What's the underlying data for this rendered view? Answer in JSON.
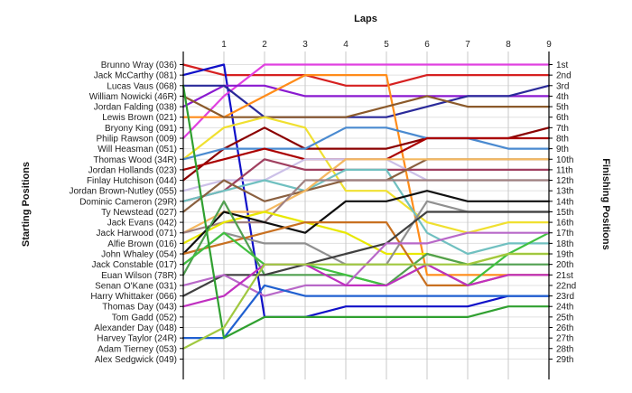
{
  "chart_data": {
    "type": "line",
    "xlabel": "Laps",
    "ylabel_left": "Starting Positions",
    "ylabel_right": "Finishing Positions",
    "x_ticks": [
      1,
      2,
      3,
      4,
      5,
      6,
      7,
      8,
      9
    ],
    "xlim": [
      0,
      9
    ],
    "ylim": [
      1,
      29
    ],
    "y_inverted": true,
    "grid": true,
    "drivers": [
      "Brunno Wray (036)",
      "Jack McCarthy (081)",
      "Lucas Vaus (068)",
      "William Nowicki (46R)",
      "Jordan Falding (038)",
      "Lewis Brown (021)",
      "Bryony King (091)",
      "Philip Rawson (009)",
      "Will Heasman (051)",
      "Thomas Wood (34R)",
      "Jordan Hollands (023)",
      "Finlay Hutchison (044)",
      "Jordan Brown-Nutley (055)",
      "Dominic Cameron (29R)",
      "Ty Newstead (027)",
      "Jack Evans (042)",
      "Jack Harwood (071)",
      "Alfie Brown (016)",
      "John Whaley (054)",
      "Jack Constable (017)",
      "Euan Wilson (78R)",
      "Senan O'Kane (031)",
      "Harry Whittaker (066)",
      "Thomas Day (043)",
      "Tom Gadd (052)",
      "Alexander Day (048)",
      "Harvey Taylor (24R)",
      "Adam Tierney (053)",
      "Alex Sedgwick (049)"
    ],
    "finishing_positions": [
      "1st",
      "2nd",
      "3rd",
      "4th",
      "5th",
      "6th",
      "7th",
      "8th",
      "9th",
      "10th",
      "11th",
      "12th",
      "13th",
      "14th",
      "15th",
      "16th",
      "17th",
      "18th",
      "19th",
      "20th",
      "21st",
      "22nd",
      "23rd",
      "24th",
      "25th",
      "26th",
      "27th",
      "28th",
      "29th"
    ],
    "series": [
      {
        "color": "#d62020",
        "positions": [
          1,
          2,
          2,
          2,
          3,
          3,
          2,
          2,
          2,
          2
        ]
      },
      {
        "color": "#1010c8",
        "positions": [
          2,
          1,
          25,
          25,
          24,
          24,
          24,
          24,
          23,
          23
        ]
      },
      {
        "color": "#e040e0",
        "positions": [
          8,
          4,
          1,
          1,
          1,
          1,
          1,
          1,
          1,
          1
        ]
      },
      {
        "color": "#8a1ad0",
        "positions": [
          5,
          3,
          3,
          4,
          4,
          4,
          4,
          4,
          4,
          4
        ]
      },
      {
        "color": "#2a2a9a",
        "positions": [
          3,
          3,
          6,
          6,
          6,
          6,
          5,
          4,
          4,
          3
        ]
      },
      {
        "color": "#ff8c1a",
        "positions": [
          6,
          6,
          4,
          2,
          2,
          2,
          21,
          21,
          21,
          21
        ]
      },
      {
        "color": "#8b5a2b",
        "positions": [
          4,
          6,
          6,
          6,
          6,
          5,
          4,
          5,
          5,
          5
        ]
      },
      {
        "color": "#f0e030",
        "positions": [
          10,
          7,
          6,
          7,
          13,
          13,
          16,
          17,
          16,
          16
        ]
      },
      {
        "color": "#8b0000",
        "positions": [
          12,
          9,
          7,
          9,
          9,
          9,
          8,
          8,
          8,
          7
        ]
      },
      {
        "color": "#4a8ad0",
        "positions": [
          10,
          9,
          9,
          9,
          7,
          7,
          8,
          8,
          9,
          9
        ]
      },
      {
        "color": "#aa0000",
        "positions": [
          11,
          10,
          9,
          10,
          10,
          10,
          8,
          8,
          8,
          8
        ]
      },
      {
        "color": "#ccc0e8",
        "positions": [
          13,
          12,
          12,
          10,
          10,
          10,
          12,
          12,
          12,
          12
        ]
      },
      {
        "color": "#a04060",
        "positions": [
          14,
          13,
          10,
          11,
          11,
          11,
          11,
          11,
          11,
          11
        ]
      },
      {
        "color": "#70c0c0",
        "positions": [
          14,
          13,
          12,
          13,
          11,
          11,
          17,
          19,
          18,
          18
        ]
      },
      {
        "color": "#8a6040",
        "positions": [
          15,
          12,
          14,
          13,
          12,
          12,
          10,
          10,
          10,
          10
        ]
      },
      {
        "color": "#f4b860",
        "positions": [
          17,
          15,
          15,
          13,
          10,
          10,
          10,
          10,
          10,
          10
        ]
      },
      {
        "color": "#a08080",
        "positions": [
          17,
          16,
          16,
          12,
          12,
          12,
          12,
          12,
          12,
          12
        ]
      },
      {
        "color": "#e8e800",
        "positions": [
          18,
          16,
          15,
          16,
          17,
          19,
          19,
          20,
          19,
          19
        ]
      },
      {
        "color": "#101010",
        "positions": [
          19,
          15,
          16,
          17,
          14,
          14,
          13,
          14,
          14,
          14
        ]
      },
      {
        "color": "#909090",
        "positions": [
          20,
          17,
          18,
          18,
          20,
          20,
          14,
          15,
          15,
          15
        ]
      },
      {
        "color": "#c87020",
        "positions": [
          19,
          18,
          17,
          16,
          16,
          16,
          22,
          22,
          21,
          21
        ]
      },
      {
        "color": "#50a050",
        "positions": [
          21,
          14,
          21,
          21,
          21,
          22,
          19,
          20,
          20,
          20
        ]
      },
      {
        "color": "#40c040",
        "positions": [
          20,
          17,
          20,
          20,
          21,
          22,
          20,
          22,
          19,
          17
        ]
      },
      {
        "color": "#404040",
        "positions": [
          23,
          21,
          21,
          20,
          19,
          18,
          15,
          15,
          15,
          15
        ]
      },
      {
        "color": "#b868c8",
        "positions": [
          22,
          21,
          23,
          22,
          22,
          18,
          18,
          17,
          17,
          17
        ]
      },
      {
        "color": "#c030c0",
        "positions": [
          24,
          23,
          20,
          20,
          22,
          22,
          20,
          22,
          21,
          21
        ]
      },
      {
        "color": "#2060d0",
        "positions": [
          27,
          27,
          22,
          23,
          23,
          23,
          23,
          23,
          23,
          23
        ]
      },
      {
        "color": "#30a030",
        "positions": [
          3,
          27,
          25,
          25,
          25,
          25,
          25,
          25,
          24,
          24
        ]
      },
      {
        "color": "#a0c840",
        "positions": [
          28,
          26,
          20,
          20,
          20,
          20,
          20,
          20,
          19,
          19
        ]
      }
    ]
  }
}
